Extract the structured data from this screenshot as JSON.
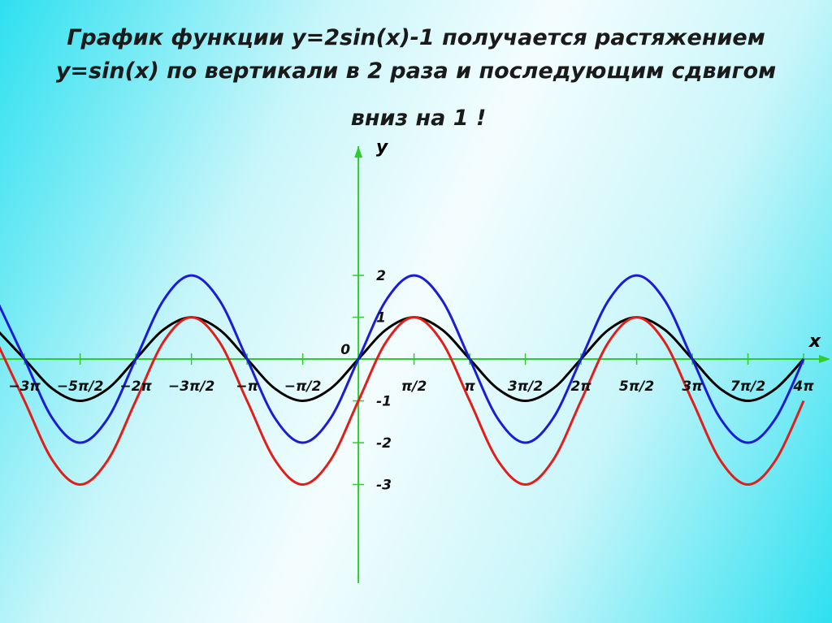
{
  "chart_data": {
    "type": "line",
    "title": [
      "График функции y=2sin(x)-1 получается растяжением",
      "y=sin(x)  по вертикали в 2 раза и последующим сдвигом",
      "вниз на 1 !"
    ],
    "x_label": "x",
    "y_label": "y",
    "x": [
      -3.25,
      -3,
      -2.75,
      -2.5,
      -2.25,
      -2,
      -1.75,
      -1.5,
      -1.25,
      -1,
      -0.75,
      -0.5,
      -0.25,
      0,
      0.25,
      0.5,
      0.75,
      1,
      1.25,
      1.5,
      1.75,
      2,
      2.25,
      2.5,
      2.75,
      3,
      3.25,
      3.5,
      3.75,
      4
    ],
    "series": [
      {
        "color": "#000000",
        "values": [
          0.707,
          0,
          -0.707,
          -1,
          -0.707,
          0,
          0.707,
          1,
          0.707,
          0,
          -0.707,
          -1,
          -0.707,
          0,
          0.707,
          1,
          0.707,
          0,
          -0.707,
          -1,
          -0.707,
          0,
          0.707,
          1,
          0.707,
          0,
          -0.707,
          -1,
          -0.707,
          0
        ]
      },
      {
        "color": "#1c1cd6",
        "values": [
          1.414,
          0,
          -1.414,
          -2,
          -1.414,
          0,
          1.414,
          2,
          1.414,
          0,
          -1.414,
          -2,
          -1.414,
          0,
          1.414,
          2,
          1.414,
          0,
          -1.414,
          -2,
          -1.414,
          0,
          1.414,
          2,
          1.414,
          0,
          -1.414,
          -2,
          -1.414,
          0
        ]
      },
      {
        "color": "#e01e1a",
        "values": [
          0.414,
          -1,
          -2.414,
          -3,
          -2.414,
          -1,
          0.414,
          1,
          0.414,
          -1,
          -2.414,
          -3,
          -2.414,
          -1,
          0.414,
          1,
          0.414,
          -1,
          -2.414,
          -3,
          -2.414,
          -1,
          0.414,
          1,
          0.414,
          -1,
          -2.414,
          -3,
          -2.414,
          -1
        ]
      }
    ],
    "xlim": [
      -3.22,
      4.255
    ],
    "ylim": [
      -5.36,
      5.09
    ],
    "xticks": [
      {
        "value": -3,
        "label": "−3π"
      },
      {
        "value": -2.5,
        "label": "−5π/2"
      },
      {
        "value": -2,
        "label": "−2π"
      },
      {
        "value": -1.5,
        "label": "−3π/2"
      },
      {
        "value": -1,
        "label": "−π"
      },
      {
        "value": -0.5,
        "label": "−π/2"
      },
      {
        "value": 0.5,
        "label": "π/2"
      },
      {
        "value": 1,
        "label": "π"
      },
      {
        "value": 1.5,
        "label": "3π/2"
      },
      {
        "value": 2,
        "label": "2π"
      },
      {
        "value": 2.5,
        "label": "5π/2"
      },
      {
        "value": 3,
        "label": "3π"
      },
      {
        "value": 3.5,
        "label": "7π/2"
      },
      {
        "value": 4,
        "label": "4π"
      }
    ],
    "yticks": [
      2,
      1,
      0,
      -1,
      -2,
      -3
    ],
    "axis_color": "#2fcc2f"
  }
}
